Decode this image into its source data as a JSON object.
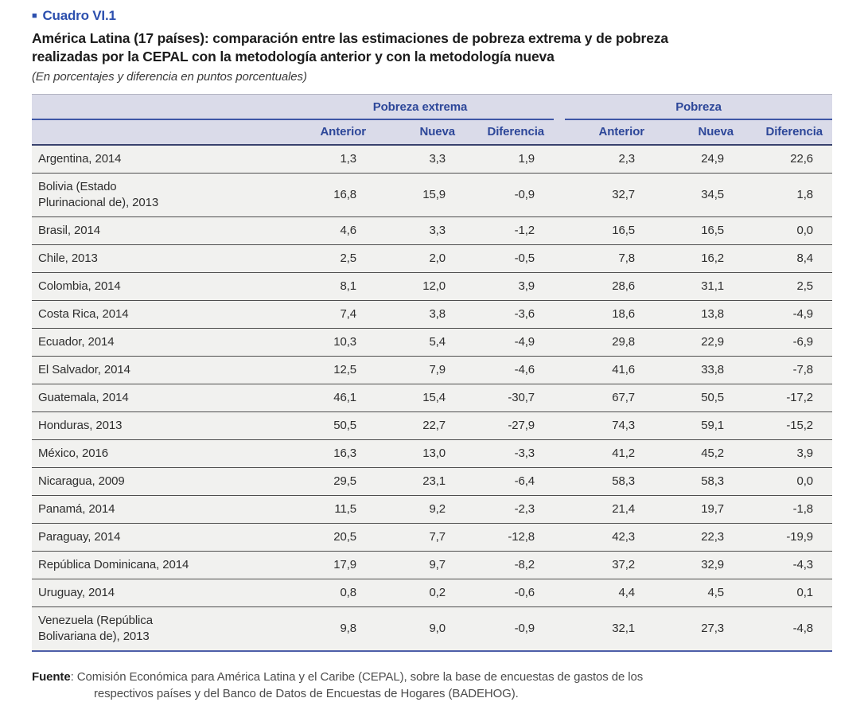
{
  "colors": {
    "accent_blue": "#2c4fae",
    "header_text_blue": "#2d4799",
    "header_background": "#dadbe9",
    "group_underline_blue": "#3e56a6",
    "header_bottom_line": "#39426e",
    "row_background": "#f1f1ef",
    "row_separator": "#4e4e4e",
    "table_bottom_line": "#4d5ea8"
  },
  "header": {
    "bullet": "■",
    "label": "Cuadro VI.1",
    "title": "América Latina (17 países): comparación entre las estimaciones de pobreza extrema y de pobreza\nrealizadas por la CEPAL con la metodología anterior y con la metodología nueva",
    "subtitle": "(En porcentajes y diferencia en puntos porcentuales)"
  },
  "table": {
    "group_headers": [
      {
        "label": "Pobreza extrema"
      },
      {
        "label": "Pobreza"
      }
    ],
    "column_headers": [
      "Anterior",
      "Nueva",
      "Diferencia",
      "Anterior",
      "Nueva",
      "Diferencia"
    ],
    "rows": [
      {
        "country": "Argentina, 2014",
        "values": [
          "1,3",
          "3,3",
          "1,9",
          "2,3",
          "24,9",
          "22,6"
        ]
      },
      {
        "country": "Bolivia (Estado\nPlurinacional de), 2013",
        "values": [
          "16,8",
          "15,9",
          "-0,9",
          "32,7",
          "34,5",
          "1,8"
        ]
      },
      {
        "country": "Brasil, 2014",
        "values": [
          "4,6",
          "3,3",
          "-1,2",
          "16,5",
          "16,5",
          "0,0"
        ]
      },
      {
        "country": "Chile, 2013",
        "values": [
          "2,5",
          "2,0",
          "-0,5",
          "7,8",
          "16,2",
          "8,4"
        ]
      },
      {
        "country": "Colombia, 2014",
        "values": [
          "8,1",
          "12,0",
          "3,9",
          "28,6",
          "31,1",
          "2,5"
        ]
      },
      {
        "country": "Costa Rica, 2014",
        "values": [
          "7,4",
          "3,8",
          "-3,6",
          "18,6",
          "13,8",
          "-4,9"
        ]
      },
      {
        "country": "Ecuador, 2014",
        "values": [
          "10,3",
          "5,4",
          "-4,9",
          "29,8",
          "22,9",
          "-6,9"
        ]
      },
      {
        "country": "El Salvador, 2014",
        "values": [
          "12,5",
          "7,9",
          "-4,6",
          "41,6",
          "33,8",
          "-7,8"
        ]
      },
      {
        "country": "Guatemala, 2014",
        "values": [
          "46,1",
          "15,4",
          "-30,7",
          "67,7",
          "50,5",
          "-17,2"
        ]
      },
      {
        "country": "Honduras, 2013",
        "values": [
          "50,5",
          "22,7",
          "-27,9",
          "74,3",
          "59,1",
          "-15,2"
        ]
      },
      {
        "country": "México, 2016",
        "values": [
          "16,3",
          "13,0",
          "-3,3",
          "41,2",
          "45,2",
          "3,9"
        ]
      },
      {
        "country": "Nicaragua, 2009",
        "values": [
          "29,5",
          "23,1",
          "-6,4",
          "58,3",
          "58,3",
          "0,0"
        ]
      },
      {
        "country": "Panamá, 2014",
        "values": [
          "11,5",
          "9,2",
          "-2,3",
          "21,4",
          "19,7",
          "-1,8"
        ]
      },
      {
        "country": "Paraguay, 2014",
        "values": [
          "20,5",
          "7,7",
          "-12,8",
          "42,3",
          "22,3",
          "-19,9"
        ]
      },
      {
        "country": "República Dominicana, 2014",
        "values": [
          "17,9",
          "9,7",
          "-8,2",
          "37,2",
          "32,9",
          "-4,3"
        ]
      },
      {
        "country": "Uruguay, 2014",
        "values": [
          "0,8",
          "0,2",
          "-0,6",
          "4,4",
          "4,5",
          "0,1"
        ]
      },
      {
        "country": "Venezuela (República\nBolivariana de), 2013",
        "values": [
          "9,8",
          "9,0",
          "-0,9",
          "32,1",
          "27,3",
          "-4,8"
        ]
      }
    ]
  },
  "footer": {
    "source_label": "Fuente",
    "source_text": ": Comisión Económica para América Latina y el Caribe (CEPAL), sobre la base de encuestas de gastos de los\nrespectivos países y del Banco de Datos de Encuestas de Hogares (BADEHOG)."
  }
}
